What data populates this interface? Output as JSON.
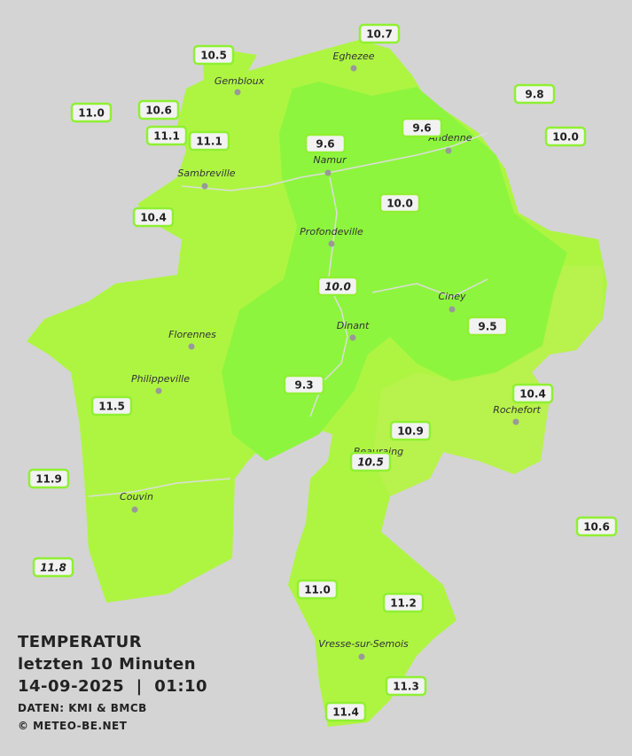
{
  "title": "TEMPERATUR",
  "subtitle": "letzten 10 Minuten",
  "timestamp": "14-09-2025  |  01:10",
  "source": "DATEN: KMI & BMCB",
  "credit": "© METEO-BE.NET",
  "towns": [
    "Eghezee",
    "Gembloux",
    "Andenne",
    "Namur",
    "Sambreville",
    "Profondeville",
    "Ciney",
    "Dinant",
    "Florennes",
    "Philippeville",
    "Rochefort",
    "Beauraing",
    "Couvin",
    "Vresse-sur-Semois"
  ],
  "stations": [
    "10.7",
    "10.5",
    "9.8",
    "11.0",
    "10.6",
    "9.6",
    "10.0",
    "11.1",
    "11.1",
    "9.6",
    "10.0",
    "10.4",
    "10.0",
    "9.5",
    "10.4",
    "9.3",
    "11.5",
    "10.9",
    "10.5",
    "11.9",
    "10.6",
    "11.8",
    "11.0",
    "11.2",
    "11.3",
    "11.4"
  ]
}
